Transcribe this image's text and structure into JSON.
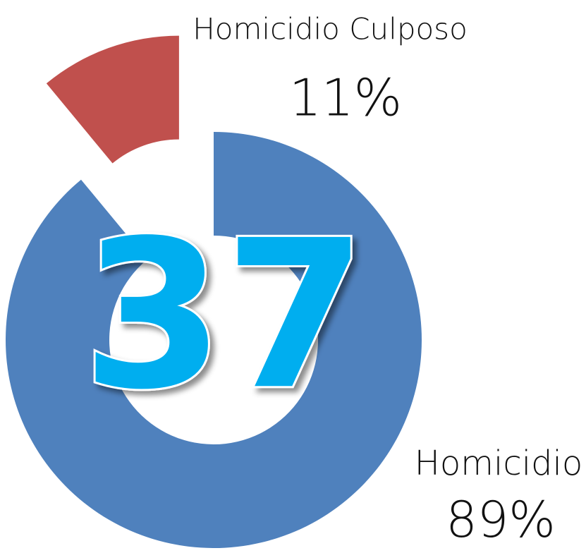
{
  "chart_data": {
    "type": "donut",
    "categories": [
      "Homicidio",
      "Homicidio Culposo"
    ],
    "values": [
      89,
      11
    ],
    "value_labels": [
      "89%",
      "11%"
    ],
    "colors": [
      "#4f81bd",
      "#c0504d"
    ],
    "center_label": 37
  }
}
